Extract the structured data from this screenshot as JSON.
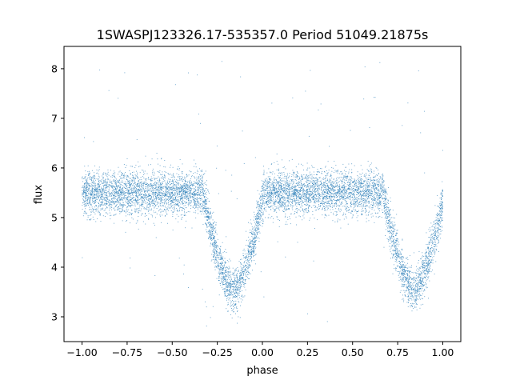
{
  "chart_data": {
    "type": "scatter",
    "title": "1SWASPJ123326.17-535357.0 Period 51049.21875s",
    "xlabel": "phase",
    "ylabel": "flux",
    "xlim": [
      -1.1,
      1.1
    ],
    "ylim": [
      2.5,
      8.45
    ],
    "x_ticks": [
      -1.0,
      -0.75,
      -0.5,
      -0.25,
      0.0,
      0.25,
      0.5,
      0.75,
      1.0
    ],
    "x_tick_labels": [
      "−1.00",
      "−0.75",
      "−0.50",
      "−0.25",
      "0.00",
      "0.25",
      "0.50",
      "0.75",
      "1.00"
    ],
    "y_ticks": [
      3,
      4,
      5,
      6,
      7,
      8
    ],
    "y_tick_labels": [
      "3",
      "4",
      "5",
      "6",
      "7",
      "8"
    ],
    "grid": false,
    "marker_color": "#1f77b4",
    "series": [
      {
        "phase_range": [
          -1.0,
          1.0
        ],
        "baseline_flux": 5.5,
        "baseline_scatter": 0.22,
        "eclipses": [
          {
            "center_phase": -0.16,
            "min_flux": 3.55,
            "half_width_phase": 0.17
          },
          {
            "center_phase": 0.84,
            "min_flux": 3.55,
            "half_width_phase": 0.17
          }
        ],
        "outlier_flux_range": [
          2.8,
          8.2
        ]
      }
    ]
  }
}
